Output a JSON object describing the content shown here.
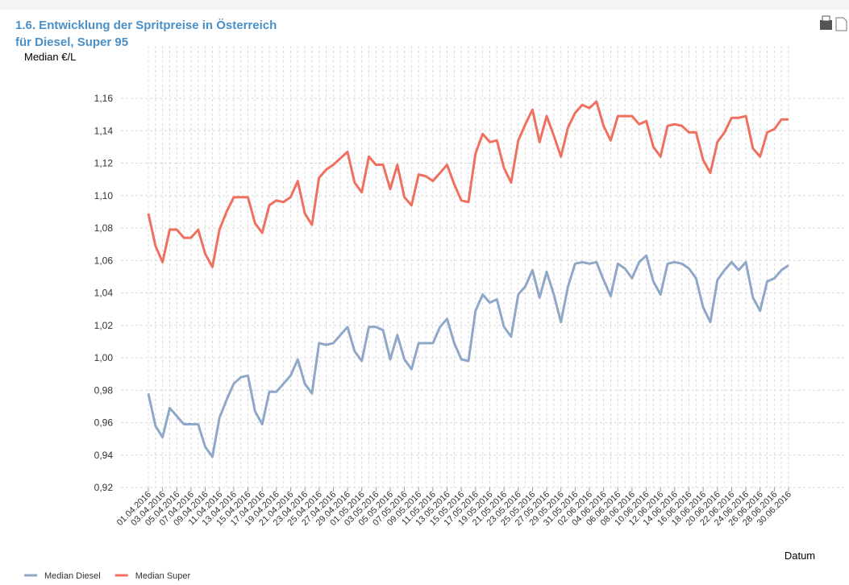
{
  "chart_data": {
    "type": "line",
    "title": "1.6. Entwicklung der Spritpreise in Österreich",
    "subtitle": "für Diesel, Super 95",
    "y_label": "Median €/L",
    "x_label": "Datum",
    "categories": [
      "01.04.2016",
      null,
      "03.04.2016",
      null,
      "05.04.2016",
      null,
      "07.04.2016",
      null,
      "09.04.2016",
      null,
      "11.04.2016",
      null,
      "13.04.2016",
      null,
      "15.04.2016",
      null,
      "17.04.2016",
      null,
      "19.04.2016",
      null,
      "21.04.2016",
      null,
      "23.04.2016",
      null,
      "25.04.2016",
      null,
      "27.04.2016",
      null,
      "29.04.2016",
      null,
      "01.05.2016",
      null,
      "03.05.2016",
      null,
      "05.05.2016",
      null,
      "07.05.2016",
      null,
      "09.05.2016",
      null,
      "11.05.2016",
      null,
      "13.05.2016",
      null,
      "15.05.2016",
      null,
      "17.05.2016",
      null,
      "19.05.2016",
      null,
      "21.05.2016",
      null,
      "23.05.2016",
      null,
      "25.05.2016",
      null,
      "27.05.2016",
      null,
      "29.05.2016",
      null,
      "31.05.2016",
      null,
      "02.06.2016",
      null,
      "04.06.2016",
      null,
      "06.06.2016",
      null,
      "08.06.2016",
      null,
      "10.06.2016",
      null,
      "12.06.2016",
      null,
      "14.06.2016",
      null,
      "16.06.2016",
      null,
      "18.06.2016",
      null,
      "20.06.2016",
      null,
      "22.06.2016",
      null,
      "24.06.2016",
      null,
      "26.06.2016",
      null,
      "28.06.2016",
      null,
      "30.06.2016"
    ],
    "series": [
      {
        "name": "Median Diesel",
        "color": "#8fa8c8",
        "values": [
          0.978,
          0.958,
          0.951,
          0.969,
          0.964,
          0.959,
          0.959,
          0.959,
          0.945,
          0.939,
          0.963,
          0.974,
          0.984,
          0.988,
          0.989,
          0.967,
          0.959,
          0.979,
          0.979,
          0.984,
          0.989,
          0.999,
          0.984,
          0.978,
          1.009,
          1.008,
          1.009,
          1.014,
          1.019,
          1.004,
          0.998,
          1.019,
          1.019,
          1.017,
          0.999,
          1.014,
          0.999,
          0.993,
          1.009,
          1.009,
          1.009,
          1.019,
          1.024,
          1.009,
          0.999,
          0.998,
          1.029,
          1.039,
          1.034,
          1.036,
          1.019,
          1.013,
          1.039,
          1.044,
          1.054,
          1.037,
          1.053,
          1.039,
          1.022,
          1.044,
          1.058,
          1.059,
          1.058,
          1.059,
          1.048,
          1.038,
          1.058,
          1.055,
          1.049,
          1.059,
          1.063,
          1.047,
          1.039,
          1.058,
          1.059,
          1.058,
          1.055,
          1.049,
          1.031,
          1.022,
          1.048,
          1.054,
          1.059,
          1.054,
          1.059,
          1.037,
          1.029,
          1.047,
          1.049,
          1.054,
          1.057
        ]
      },
      {
        "name": "Median Super",
        "color": "#f07060",
        "values": [
          1.089,
          1.069,
          1.059,
          1.079,
          1.079,
          1.074,
          1.074,
          1.079,
          1.064,
          1.056,
          1.079,
          1.09,
          1.099,
          1.099,
          1.099,
          1.083,
          1.077,
          1.094,
          1.097,
          1.096,
          1.099,
          1.109,
          1.089,
          1.082,
          1.111,
          1.116,
          1.119,
          1.123,
          1.127,
          1.108,
          1.102,
          1.124,
          1.119,
          1.119,
          1.104,
          1.119,
          1.099,
          1.094,
          1.113,
          1.112,
          1.109,
          1.114,
          1.119,
          1.107,
          1.097,
          1.096,
          1.126,
          1.138,
          1.133,
          1.134,
          1.117,
          1.108,
          1.134,
          1.144,
          1.153,
          1.133,
          1.149,
          1.137,
          1.124,
          1.142,
          1.151,
          1.156,
          1.154,
          1.158,
          1.143,
          1.134,
          1.149,
          1.149,
          1.149,
          1.144,
          1.146,
          1.13,
          1.124,
          1.143,
          1.144,
          1.143,
          1.139,
          1.139,
          1.122,
          1.114,
          1.133,
          1.139,
          1.148,
          1.148,
          1.149,
          1.129,
          1.124,
          1.139,
          1.141,
          1.147,
          1.147
        ]
      }
    ],
    "ylim": [
      0.91,
      1.17
    ],
    "yticks": [
      {
        "value": 0.92,
        "label": "0,92"
      },
      {
        "value": 0.94,
        "label": "0,94"
      },
      {
        "value": 0.96,
        "label": "0,96"
      },
      {
        "value": 0.98,
        "label": "0,98"
      },
      {
        "value": 1.0,
        "label": "1,00"
      },
      {
        "value": 1.02,
        "label": "1,02"
      },
      {
        "value": 1.04,
        "label": "1,04"
      },
      {
        "value": 1.06,
        "label": "1,06"
      },
      {
        "value": 1.08,
        "label": "1,08"
      },
      {
        "value": 1.1,
        "label": "1,10"
      },
      {
        "value": 1.12,
        "label": "1,12"
      },
      {
        "value": 1.14,
        "label": "1,14"
      },
      {
        "value": 1.16,
        "label": "1,16"
      }
    ],
    "grid": true,
    "legend": "bottom-left"
  }
}
